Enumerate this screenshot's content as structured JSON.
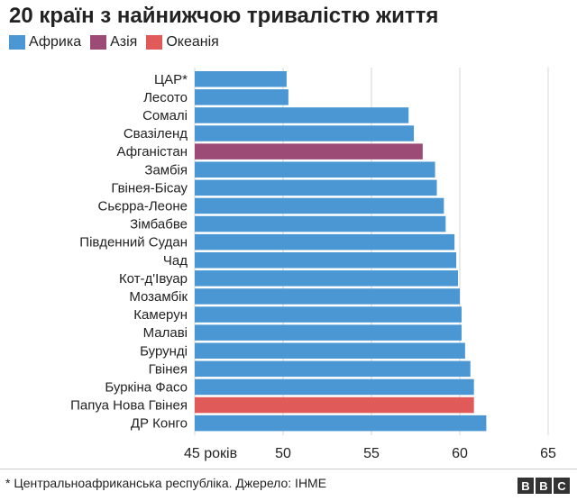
{
  "title": "20 країн з найнижчою тривалістю життя",
  "legend": [
    {
      "label": "Африка",
      "color": "#4b97d4"
    },
    {
      "label": "Азія",
      "color": "#9c4a76"
    },
    {
      "label": "Океанія",
      "color": "#e05a5a"
    }
  ],
  "footer": {
    "note": "* Центральноафриканська республіка. Джерело: IHME",
    "logo": [
      "B",
      "B",
      "C"
    ]
  },
  "chart_data": {
    "type": "bar",
    "orientation": "horizontal",
    "categories": [
      "ЦАР*",
      "Лесото",
      "Сомалі",
      "Свазіленд",
      "Афганістан",
      "Замбія",
      "Гвінея-Бісау",
      "Сьєрра-Леоне",
      "Зімбабве",
      "Південний Судан",
      "Чад",
      "Кот-д'Івуар",
      "Мозамбік",
      "Камерун",
      "Малаві",
      "Бурунді",
      "Гвінея",
      "Буркіна Фасо",
      "Папуа Нова Гвінея",
      "ДР Конго"
    ],
    "values": [
      50.2,
      50.3,
      57.1,
      57.4,
      57.9,
      58.6,
      58.7,
      59.1,
      59.2,
      59.7,
      59.8,
      59.9,
      60.0,
      60.1,
      60.1,
      60.3,
      60.6,
      60.8,
      60.8,
      61.5
    ],
    "regions": [
      "Африка",
      "Африка",
      "Африка",
      "Африка",
      "Азія",
      "Африка",
      "Африка",
      "Африка",
      "Африка",
      "Африка",
      "Африка",
      "Африка",
      "Африка",
      "Африка",
      "Африка",
      "Африка",
      "Африка",
      "Африка",
      "Океанія",
      "Африка"
    ],
    "xlim": [
      45,
      65
    ],
    "xticks": [
      45,
      50,
      55,
      60,
      65
    ],
    "xtick_labels": [
      "45 років",
      "50",
      "55",
      "60",
      "65"
    ],
    "grid": true,
    "legend_position": "top-left"
  }
}
